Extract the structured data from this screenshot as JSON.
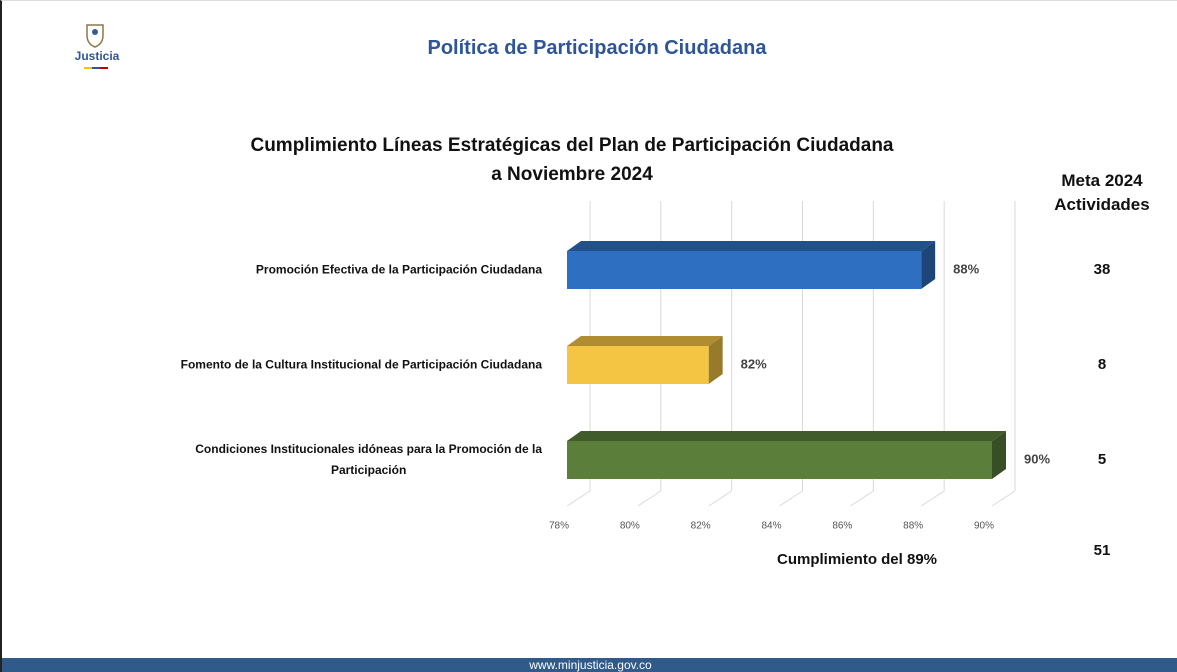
{
  "header": {
    "logo_text": "Justicia",
    "title": "Política de Participación Ciudadana"
  },
  "chart_data": {
    "type": "bar3d",
    "title": "Cumplimiento Líneas Estratégicas del Plan de Participación Ciudadana\na Noviembre 2024",
    "categories": [
      "Promoción Efectiva de la Participación Ciudadana",
      "Fomento de la Cultura Institucional de Participación Ciudadana",
      "Condiciones Institucionales idóneas para la Promoción de la\nParticipación"
    ],
    "values": [
      88,
      82,
      90
    ],
    "value_labels": [
      "88%",
      "82%",
      "90%"
    ],
    "colors": [
      "#2e6fc1",
      "#f4c443",
      "#5b7f3b"
    ],
    "xlim": [
      78,
      90
    ],
    "xticks": [
      {
        "value": 78,
        "label": "78%"
      },
      {
        "value": 80,
        "label": "80%"
      },
      {
        "value": 82,
        "label": "82%"
      },
      {
        "value": 84,
        "label": "84%"
      },
      {
        "value": 86,
        "label": "86%"
      },
      {
        "value": 88,
        "label": "88%"
      },
      {
        "value": 90,
        "label": "90%"
      }
    ],
    "grid": true,
    "annotation": "Cumplimiento del 89%"
  },
  "meta": {
    "title": "Meta 2024\nActividades",
    "values": [
      38,
      8,
      5
    ],
    "total": 51
  },
  "footer": {
    "url": "www.minjusticia.gov.co"
  }
}
